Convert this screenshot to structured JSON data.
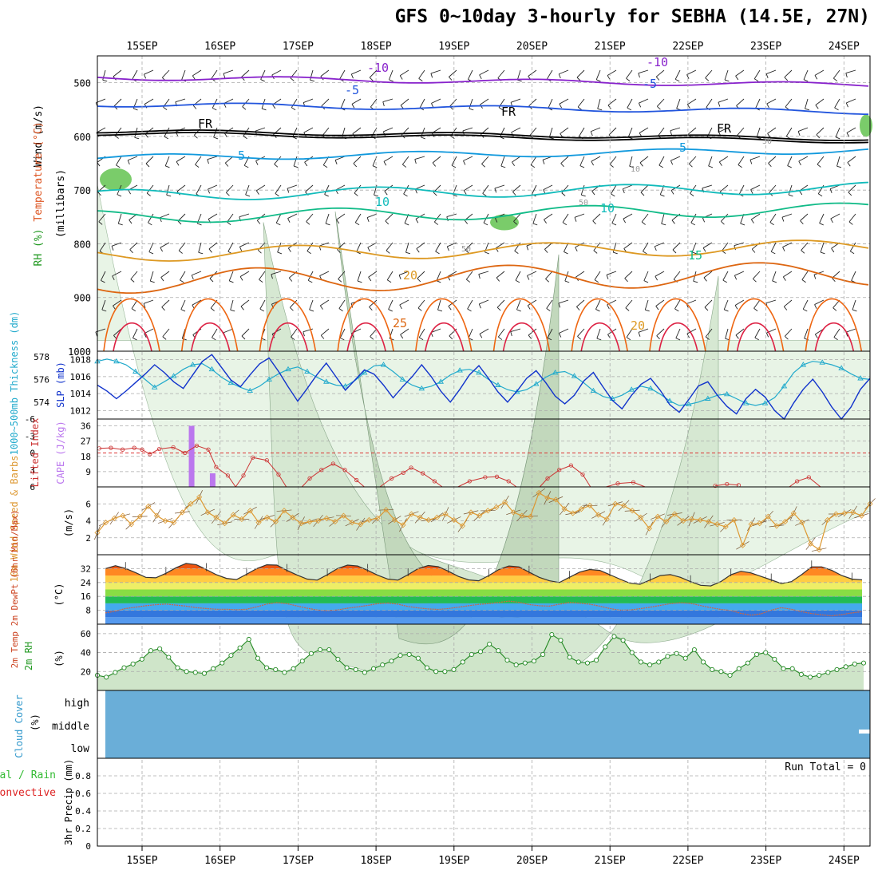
{
  "title": "GFS 0~10day 3-hourly for SEBHA (14.5E, 27N)",
  "colors": {
    "grid": "#aaaaaa",
    "frame": "#000000"
  },
  "dates": [
    "15SEP",
    "16SEP",
    "17SEP",
    "18SEP",
    "19SEP",
    "20SEP",
    "21SEP",
    "22SEP",
    "23SEP",
    "24SEP"
  ],
  "panels": {
    "upper": {
      "ylabel_wind": "Wind (m/s)",
      "ylabel_temp": "Temperature (°C)",
      "ylabel_rh": "RH (%)",
      "ylabel_units": "(millibars)",
      "pressure_levels": [
        500,
        600,
        700,
        800,
        900,
        1000
      ],
      "contour_labels": [
        {
          "text": "-10",
          "color": "#8822cc"
        },
        {
          "text": "-10",
          "color": "#8822cc"
        },
        {
          "text": "-5",
          "color": "#2255dd"
        },
        {
          "text": "-5",
          "color": "#2255dd"
        },
        {
          "text": "FR",
          "color": "#000000"
        },
        {
          "text": "FR",
          "color": "#000000"
        },
        {
          "text": "FR",
          "color": "#000000"
        },
        {
          "text": "5",
          "color": "#1199dd"
        },
        {
          "text": "5",
          "color": "#1199dd"
        },
        {
          "text": "10",
          "color": "#11bbbb"
        },
        {
          "text": "10",
          "color": "#11bbbb"
        },
        {
          "text": "15",
          "color": "#11bb88"
        },
        {
          "text": "20",
          "color": "#dd9922"
        },
        {
          "text": "20",
          "color": "#dd9922"
        },
        {
          "text": "25",
          "color": "#dd6611"
        },
        {
          "text": "30",
          "color": "#999999"
        },
        {
          "text": "10",
          "color": "#999999"
        },
        {
          "text": "50",
          "color": "#999999"
        },
        {
          "text": "50",
          "color": "#999999"
        }
      ]
    },
    "slp": {
      "ylabel_thk": "1000~500mb Thickness (dm)",
      "ylabel_slp": "SLP (mb)",
      "thk_ticks": [
        "578",
        "576",
        "574"
      ],
      "slp_ticks": [
        "1018",
        "1016",
        "1014",
        "1012"
      ]
    },
    "cape": {
      "ylabel_li": "Lifted Index",
      "ylabel_cape": "CAPE (J/kg)",
      "li_ticks": [
        "-6",
        "-3",
        "0",
        "3",
        "6"
      ],
      "cape_ticks": [
        "36",
        "27",
        "18",
        "9"
      ]
    },
    "wind10": {
      "ylabel": "10m Wind Speed & Barbs",
      "units": "(m/s)",
      "ticks": [
        "6",
        "4",
        "2"
      ]
    },
    "temp2m": {
      "ylabel": "2m Temp 2m DewPt (6hr Min/Max)",
      "units": "(°C)",
      "ticks": [
        "32",
        "24",
        "16",
        "8"
      ]
    },
    "rh2m": {
      "ylabel": "2m RH",
      "units": "(%)",
      "ticks": [
        "60",
        "40",
        "20"
      ]
    },
    "cloud": {
      "ylabel": "Cloud Cover",
      "units": "(%)",
      "levels": [
        "high",
        "middle",
        "low"
      ]
    },
    "precip": {
      "ylabel_a": "Total / Rain",
      "ylabel_b": "Convective",
      "ylabel_c": "3hr Precip (mm)",
      "ticks": [
        "0.8",
        "0.6",
        "0.4",
        "0.2",
        "0"
      ],
      "run_total": "Run Total = 0"
    }
  },
  "chart_data": [
    {
      "type": "line",
      "title": "1000~500mb Thickness (dm) and SLP (mb)",
      "x": "3-hourly from 14SEP 12Z to 24SEP 12Z",
      "series": [
        {
          "name": "SLP (mb)",
          "color": "#1133cc",
          "values": [
            1015.0,
            1014.3,
            1013.4,
            1014.3,
            1015.3,
            1016.3,
            1017.4,
            1016.5,
            1015.4,
            1014.6,
            1016.2,
            1017.8,
            1018.6,
            1017.1,
            1015.6,
            1014.8,
            1016.2,
            1017.5,
            1018.2,
            1016.6,
            1014.8,
            1013.1,
            1014.6,
            1016.2,
            1017.6,
            1016.0,
            1014.4,
            1015.6,
            1016.8,
            1016.3,
            1015.0,
            1013.5,
            1014.8,
            1016.0,
            1017.4,
            1016.0,
            1014.3,
            1013.0,
            1014.5,
            1016.2,
            1017.3,
            1015.8,
            1014.2,
            1013.0,
            1014.3,
            1015.8,
            1016.7,
            1015.3,
            1013.7,
            1012.8,
            1013.8,
            1015.5,
            1016.5,
            1014.8,
            1013.2,
            1012.2,
            1013.8,
            1015.1,
            1015.8,
            1014.4,
            1012.7,
            1011.8,
            1013.3,
            1014.9,
            1015.4,
            1013.8,
            1012.5,
            1011.6,
            1013.4,
            1014.5,
            1013.6,
            1012.0,
            1011.0,
            1012.9,
            1014.5,
            1015.7,
            1014.2,
            1012.4,
            1011.0,
            1012.4,
            1014.5,
            1015.8
          ]
        },
        {
          "name": "1000~500mb Thickness (dm)",
          "color": "#22aacc",
          "values": [
            577.6,
            577.8,
            577.6,
            577.3,
            576.7,
            576.0,
            575.3,
            575.8,
            576.3,
            576.9,
            577.3,
            577.4,
            576.9,
            576.2,
            575.7,
            575.3,
            575.0,
            575.4,
            576.0,
            576.5,
            576.9,
            577.1,
            576.7,
            576.2,
            575.8,
            575.5,
            575.4,
            575.9,
            576.6,
            577.2,
            577.3,
            576.7,
            576.0,
            575.5,
            575.2,
            575.4,
            575.8,
            576.4,
            576.8,
            576.9,
            576.6,
            576.0,
            575.5,
            575.1,
            574.9,
            575.1,
            575.6,
            576.2,
            576.6,
            576.7,
            576.3,
            575.7,
            575.0,
            574.5,
            574.3,
            574.6,
            575.1,
            575.4,
            575.2,
            574.7,
            574.1,
            573.7,
            573.8,
            574.0,
            574.3,
            574.6,
            574.7,
            574.3,
            573.9,
            573.7,
            573.9,
            574.4,
            575.4,
            576.6,
            577.3,
            577.6,
            577.5,
            577.3,
            577.0,
            576.5,
            576.1,
            576.0
          ]
        }
      ],
      "ylim_slp": [
        1011,
        1019
      ],
      "ylim_thk": [
        572.5,
        578.5
      ]
    },
    {
      "type": "bar",
      "title": "Lifted Index / CAPE",
      "series": [
        {
          "name": "CAPE (J/kg)",
          "color": "#bb77ee",
          "bars": [
            {
              "date_index": 0.63,
              "value": 36
            },
            {
              "date_index": 0.9,
              "value": 8
            }
          ]
        },
        {
          "name": "Lifted Index",
          "color": "#cc3333",
          "segments": [
            [
              [
                -0.55,
                -0.8
              ],
              [
                -0.4,
                -0.9
              ],
              [
                -0.25,
                -0.6
              ],
              [
                -0.1,
                -0.9
              ],
              [
                0.0,
                -0.6
              ],
              [
                0.1,
                0.2
              ],
              [
                0.22,
                -0.7
              ],
              [
                0.4,
                -1.0
              ],
              [
                0.55,
                0.0
              ],
              [
                0.7,
                -1.3
              ],
              [
                0.85,
                -0.6
              ],
              [
                0.95,
                2.5
              ],
              [
                1.1,
                4.0
              ],
              [
                1.2,
                6.0
              ]
            ],
            [
              [
                1.2,
                6.0
              ],
              [
                1.3,
                4.0
              ],
              [
                1.42,
                0.8
              ],
              [
                1.6,
                1.3
              ],
              [
                1.75,
                3.8
              ],
              [
                1.85,
                6.0
              ]
            ],
            [
              [
                2.05,
                6.0
              ],
              [
                2.15,
                4.5
              ],
              [
                2.3,
                3.0
              ],
              [
                2.45,
                1.9
              ],
              [
                2.6,
                3.0
              ],
              [
                2.75,
                4.8
              ],
              [
                2.85,
                6.0
              ]
            ],
            [
              [
                3.05,
                6.0
              ],
              [
                3.2,
                4.5
              ],
              [
                3.35,
                3.5
              ],
              [
                3.45,
                2.6
              ],
              [
                3.6,
                3.6
              ],
              [
                3.75,
                5.0
              ],
              [
                3.85,
                6.0
              ]
            ],
            [
              [
                4.05,
                6.0
              ],
              [
                4.2,
                5.0
              ],
              [
                4.4,
                4.3
              ],
              [
                4.55,
                4.2
              ],
              [
                4.7,
                5.0
              ],
              [
                4.8,
                6.0
              ]
            ],
            [
              [
                5.1,
                6.0
              ],
              [
                5.2,
                4.5
              ],
              [
                5.35,
                3.0
              ],
              [
                5.5,
                2.2
              ],
              [
                5.65,
                3.8
              ],
              [
                5.75,
                6.0
              ]
            ],
            [
              [
                5.85,
                6.0
              ],
              [
                5.95,
                6.0
              ],
              [
                6.1,
                5.4
              ],
              [
                6.3,
                5.2
              ],
              [
                6.45,
                6.0
              ]
            ],
            [
              [
                7.35,
                5.8
              ],
              [
                7.5,
                5.5
              ],
              [
                7.65,
                5.7
              ]
            ],
            [
              [
                8.3,
                6.0
              ],
              [
                8.4,
                5.0
              ],
              [
                8.55,
                4.3
              ],
              [
                8.7,
                6.0
              ]
            ]
          ]
        }
      ],
      "ylim_li": [
        6,
        -6
      ],
      "ylim_cape": [
        0,
        40
      ]
    },
    {
      "type": "line",
      "title": "10m Wind Speed (m/s)",
      "series": [
        {
          "name": "10m Wind Speed",
          "color": "#dd9933",
          "values": [
            2.6,
            3.8,
            4.3,
            4.6,
            3.6,
            4.5,
            5.7,
            4.6,
            4.0,
            3.8,
            5.0,
            6.0,
            6.8,
            5.0,
            4.4,
            3.7,
            4.7,
            4.2,
            5.2,
            3.8,
            4.4,
            3.9,
            5.2,
            4.4,
            3.7,
            3.9,
            4.0,
            4.3,
            3.9,
            4.6,
            3.8,
            3.6,
            4.1,
            4.3,
            5.3,
            4.1,
            3.5,
            4.8,
            4.4,
            4.1,
            4.4,
            4.8,
            4.1,
            3.4,
            5.0,
            4.6,
            5.2,
            5.6,
            6.2,
            5.0,
            4.6,
            4.5,
            7.3,
            6.7,
            6.5,
            5.4,
            4.9,
            5.4,
            5.8,
            4.7,
            4.2,
            6.0,
            5.8,
            5.2,
            4.4,
            3.1,
            4.5,
            3.9,
            4.8,
            4.0,
            4.2,
            4.1,
            3.9,
            3.6,
            3.3,
            4.1,
            1.1,
            3.6,
            3.7,
            4.5,
            3.4,
            3.9,
            4.9,
            3.8,
            1.3,
            0.6,
            4.1,
            4.8,
            4.9,
            5.0,
            4.6,
            6.0
          ]
        }
      ],
      "ylim": [
        0,
        8
      ]
    },
    {
      "type": "line",
      "title": "2m Temp / 2m DewPt",
      "series": [
        {
          "name": "2m Temp",
          "color": "#333333",
          "values": [
            32.0,
            33.7,
            32.1,
            29.7,
            27.0,
            26.7,
            29.3,
            32.5,
            35.0,
            34.3,
            31.5,
            28.5,
            26.4,
            25.7,
            28.8,
            32.0,
            34.2,
            34.0,
            31.0,
            28.3,
            26.0,
            25.4,
            28.5,
            32.0,
            34.0,
            33.5,
            31.0,
            28.2,
            26.0,
            25.4,
            28.5,
            32.0,
            33.8,
            33.1,
            30.5,
            27.5,
            25.5,
            25.0,
            28.0,
            31.5,
            33.5,
            33.0,
            30.0,
            27.0,
            25.0,
            24.0,
            27.0,
            30.0,
            31.5,
            31.0,
            28.5,
            26.0,
            23.6,
            23.0,
            25.5,
            28.0,
            28.6,
            27.0,
            24.5,
            22.4,
            22.0,
            24.5,
            28.5,
            30.5,
            29.5,
            27.5,
            25.5,
            23.4,
            24.5,
            28.5,
            33.0,
            33.0,
            31.0,
            28.0,
            26.0,
            25.5
          ]
        },
        {
          "name": "2m DewPt",
          "color": "#cc6644",
          "values": [
            6.5,
            7.5,
            9.0,
            9.8,
            10.6,
            11.2,
            11.6,
            11.0,
            10.4,
            9.5,
            9.0,
            8.6,
            8.6,
            8.3,
            8.6,
            10.0,
            11.6,
            12.4,
            11.8,
            10.5,
            9.2,
            8.2,
            7.8,
            8.2,
            9.2,
            10.0,
            10.8,
            11.8,
            12.2,
            11.5,
            10.2,
            9.4,
            8.8,
            8.5,
            9.0,
            9.8,
            10.6,
            11.4,
            11.8,
            12.5,
            13.3,
            12.6,
            11.3,
            10.6,
            10.4,
            11.5,
            12.5,
            12.1,
            11.5,
            10.4,
            9.0,
            8.1,
            8.2,
            8.9,
            9.8,
            10.8,
            11.8,
            12.3,
            12.0,
            10.7,
            9.5,
            8.5,
            7.9,
            6.2,
            5.2,
            6.0,
            8.1,
            9.5,
            8.6,
            7.2,
            6.1,
            5.4,
            4.8,
            5.5,
            6.5,
            7.2
          ]
        }
      ],
      "ylim": [
        0,
        40
      ]
    },
    {
      "type": "area",
      "title": "2m RH (%)",
      "series": [
        {
          "name": "2m RH",
          "color": "#228822",
          "values": [
            16,
            14,
            19,
            24,
            28,
            33,
            42,
            44,
            35,
            24,
            20,
            19,
            18,
            23,
            29,
            37,
            45,
            54,
            34,
            24,
            22,
            19,
            23,
            31,
            39,
            43,
            43,
            33,
            24,
            22,
            19,
            23,
            27,
            31,
            37,
            38,
            34,
            24,
            20,
            20,
            22,
            30,
            38,
            41,
            49,
            42,
            32,
            27,
            29,
            31,
            38,
            59,
            53,
            35,
            30,
            29,
            32,
            46,
            57,
            53,
            40,
            30,
            27,
            30,
            36,
            39,
            34,
            43,
            30,
            22,
            20,
            16,
            23,
            29,
            38,
            40,
            33,
            23,
            23,
            17,
            14,
            16,
            19,
            22,
            25,
            28,
            29
          ]
        }
      ],
      "ylim": [
        0,
        70
      ]
    },
    {
      "type": "area",
      "title": "Cloud Cover (%)",
      "categories": [
        "high",
        "middle",
        "low"
      ],
      "series": [
        {
          "name": "cloud cover",
          "color": "#6aaed8",
          "note": "blue fill across all levels and all times"
        }
      ]
    },
    {
      "type": "bar",
      "title": "3hr Precip (mm)",
      "series": [
        {
          "name": "Total / Rain",
          "values": []
        },
        {
          "name": "Convective",
          "values": []
        }
      ],
      "ylim": [
        0,
        1
      ]
    }
  ]
}
